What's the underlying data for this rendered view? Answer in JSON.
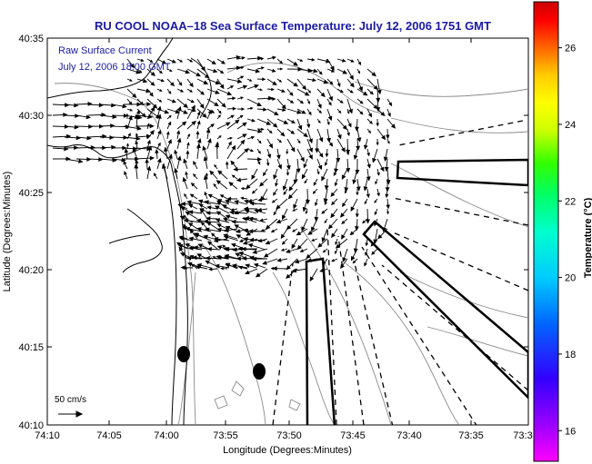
{
  "title": "RU COOL  NOAA–18  Sea Surface Temperature:  July 12, 2006 1751 GMT",
  "legend": {
    "line1": "Raw Surface Current",
    "line2": "July 12, 2006 18:00 GMT"
  },
  "axes": {
    "xlabel": "Longitude (Degrees:Minutes)",
    "ylabel": "Latitude (Degrees:Minutes)",
    "x_ticks": [
      "74:10",
      "74:05",
      "74:00",
      "73:55",
      "73:50",
      "73:45",
      "73:40",
      "73:35",
      "73:3"
    ],
    "y_ticks": [
      "40:35",
      "40:30",
      "40:25",
      "40:20",
      "40:15",
      "40:10"
    ]
  },
  "colorbar": {
    "label": "Temperature (°C)",
    "ticks": [
      "26",
      "24",
      "22",
      "20",
      "18",
      "16"
    ],
    "range": [
      15.2,
      27.2
    ]
  },
  "scale_arrow": {
    "label": "50 cm/s"
  },
  "colors": {
    "title": "#1a1aa6",
    "legend": "#1a1aa6",
    "land_outline": "#000000",
    "bathymetry": "#888888"
  }
}
